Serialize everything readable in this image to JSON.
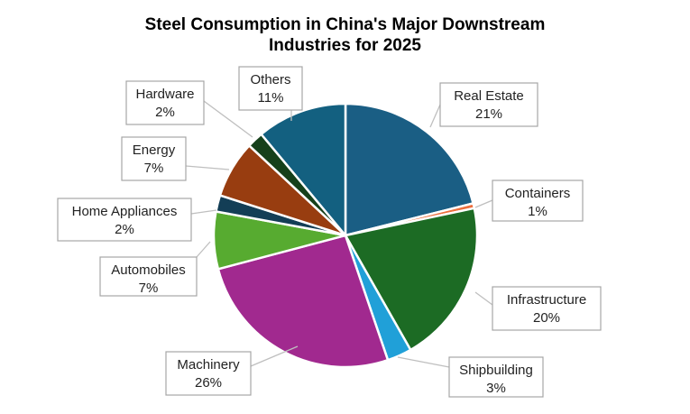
{
  "chart_data": {
    "type": "pie",
    "title_lines": [
      "Steel Consumption in China's Major Downstream",
      "Industries for 2025"
    ],
    "unit": "%",
    "start_angle_deg": 0,
    "direction": "clockwise",
    "slices": [
      {
        "label": "Real Estate",
        "value_text": "21%",
        "value": 21,
        "color": "#1a5e84"
      },
      {
        "label": "Containers",
        "value_text": "1%",
        "value": 0.6,
        "color": "#ec6f3d"
      },
      {
        "label": "Infrastructure",
        "value_text": "20%",
        "value": 20,
        "color": "#1c6b24"
      },
      {
        "label": "Shipbuilding",
        "value_text": "3%",
        "value": 3,
        "color": "#20a0d8"
      },
      {
        "label": "Machinery",
        "value_text": "26%",
        "value": 26,
        "color": "#a1298f"
      },
      {
        "label": "Automobiles",
        "value_text": "7%",
        "value": 7,
        "color": "#57ab30"
      },
      {
        "label": "Home Appliances",
        "value_text": "2%",
        "value": 2,
        "color": "#133e56"
      },
      {
        "label": "Energy",
        "value_text": "7%",
        "value": 7,
        "color": "#983d10"
      },
      {
        "label": "Hardware",
        "value_text": "2%",
        "value": 2,
        "color": "#16401a"
      },
      {
        "label": "Others",
        "value_text": "11%",
        "value": 11,
        "color": "#136080"
      }
    ]
  }
}
